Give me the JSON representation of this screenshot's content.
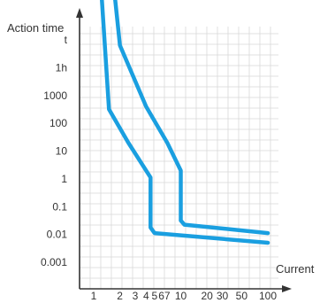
{
  "chart_data": {
    "type": "line",
    "title": "",
    "xlabel": "Current",
    "ylabel": "Action time",
    "x_tick_labels": [
      "1",
      "2",
      "3",
      "4",
      "5",
      "6",
      "7",
      "10",
      "20",
      "30",
      "50",
      "100"
    ],
    "y_tick_labels": [
      "0.001",
      "0.01",
      "0.1",
      "1",
      "10",
      "100",
      "1000",
      "1h",
      "t"
    ],
    "grid": true,
    "colors": {
      "curve": "#1a9fe0",
      "grid": "#d8d8d8",
      "axis": "#333333"
    },
    "series": [
      {
        "points": [
          {
            "x": 1.05,
            "y": 9.95
          },
          {
            "x": 1.5,
            "y": 2.5
          },
          {
            "x": 2.5,
            "y": 1.3
          },
          {
            "x": 4.5,
            "y": 0.05
          },
          {
            "x": 4.5,
            "y": -1.75
          },
          {
            "x": 5.0,
            "y": -1.95
          },
          {
            "x": 100,
            "y": -2.3
          }
        ]
      },
      {
        "points": [
          {
            "x": 1.35,
            "y": 9.95
          },
          {
            "x": 2.0,
            "y": 4.8
          },
          {
            "x": 4.0,
            "y": 2.6
          },
          {
            "x": 7.0,
            "y": 1.3
          },
          {
            "x": 10.0,
            "y": 0.3
          },
          {
            "x": 10.0,
            "y": -1.5
          },
          {
            "x": 11.0,
            "y": -1.65
          },
          {
            "x": 100,
            "y": -1.95
          }
        ]
      }
    ]
  }
}
